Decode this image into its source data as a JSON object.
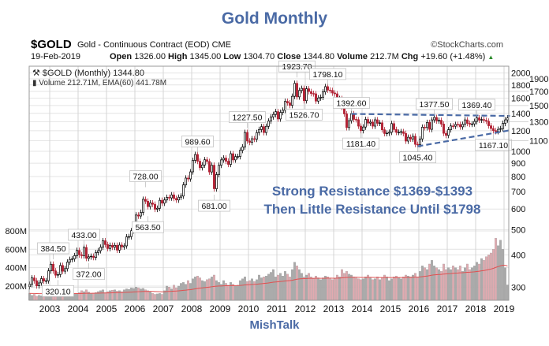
{
  "title": "Gold Monthly",
  "footer": "MishTalk",
  "header": {
    "symbol": "$GOLD",
    "description": "Gold - Continuous Contract (EOD)",
    "exchange": "CME",
    "source": "©StockCharts.com",
    "date": "19-Feb-2019",
    "open_label": "Open",
    "open": "1326.00",
    "high_label": "High",
    "high": "1345.00",
    "low_label": "Low",
    "low": "1304.70",
    "close_label": "Close",
    "close": "1344.80",
    "volume_label": "Volume",
    "volume": "212.7M",
    "chg_label": "Chg",
    "chg": "+19.60 (+1.48%)"
  },
  "legend": {
    "price": "$GOLD (Monthly) 1344.80",
    "volume": "Volume 212.71M, EMA(60) 441.78M"
  },
  "colors": {
    "up": "#000000",
    "down": "#b22234",
    "vol_up": "#aaaaaa",
    "vol_down": "#e2aab0",
    "ema": "#e05050",
    "trend": "#4a6aa5",
    "annotation": "#4a6aa5"
  },
  "chart_data": {
    "type": "candlestick",
    "price_scale": "log",
    "ylim": [
      280,
      2150
    ],
    "price_ticks": [
      2000,
      1900,
      1800,
      1700,
      1600,
      1500,
      1400,
      1300,
      1200,
      1100,
      1000,
      900,
      800,
      700,
      600,
      500,
      400,
      300
    ],
    "volume_ticks": [
      {
        "v": 800,
        "label": "800M"
      },
      {
        "v": 600,
        "label": "600M"
      },
      {
        "v": 400,
        "label": "400M"
      },
      {
        "v": 200,
        "label": "200M"
      }
    ],
    "x_ticks": [
      "2003",
      "2004",
      "2005",
      "2006",
      "2007",
      "2008",
      "2009",
      "2010",
      "2011",
      "2012",
      "2013",
      "2014",
      "2015",
      "2016",
      "2017",
      "2018",
      "2019"
    ],
    "grid": true,
    "monthly": [
      {
        "year": 2002,
        "first_month": 4,
        "closes": [
          308,
          326,
          318,
          304,
          312,
          324,
          317,
          318,
          347
        ],
        "volumes_m": [
          120,
          100,
          110,
          90,
          100,
          95,
          110,
          105,
          115
        ]
      },
      {
        "year": 2003,
        "first_month": 1,
        "closes": [
          368,
          347,
          334,
          336,
          364,
          346,
          354,
          375,
          384,
          386,
          397,
          416
        ],
        "volumes_m": [
          130,
          140,
          120,
          110,
          125,
          115,
          120,
          110,
          130,
          125,
          120,
          115
        ]
      },
      {
        "year": 2004,
        "first_month": 1,
        "closes": [
          400,
          397,
          427,
          388,
          393,
          395,
          391,
          408,
          415,
          428,
          453,
          438
        ],
        "volumes_m": [
          130,
          150,
          140,
          160,
          135,
          120,
          125,
          130,
          140,
          150,
          160,
          130
        ]
      },
      {
        "year": 2005,
        "first_month": 1,
        "closes": [
          423,
          435,
          428,
          435,
          417,
          436,
          429,
          433,
          469,
          470,
          495,
          518
        ],
        "volumes_m": [
          140,
          150,
          155,
          160,
          145,
          150,
          140,
          160,
          170,
          165,
          180,
          175
        ]
      },
      {
        "year": 2006,
        "first_month": 1,
        "closes": [
          569,
          564,
          582,
          654,
          643,
          613,
          633,
          626,
          599,
          604,
          648,
          632
        ],
        "volumes_m": [
          190,
          180,
          170,
          175,
          160,
          150,
          140,
          120,
          110,
          115,
          120,
          110
        ]
      },
      {
        "year": 2007,
        "first_month": 1,
        "closes": [
          650,
          665,
          662,
          680,
          659,
          650,
          666,
          673,
          743,
          789,
          783,
          834
        ],
        "volumes_m": [
          150,
          200,
          190,
          170,
          210,
          180,
          200,
          230,
          240,
          220,
          260,
          230
        ]
      },
      {
        "year": 2008,
        "first_month": 1,
        "closes": [
          923,
          972,
          916,
          865,
          886,
          928,
          914,
          833,
          884,
          718,
          814,
          884
        ],
        "volumes_m": [
          280,
          300,
          310,
          290,
          260,
          250,
          270,
          280,
          300,
          320,
          260,
          240
        ]
      },
      {
        "year": 2009,
        "first_month": 1,
        "closes": [
          927,
          942,
          916,
          891,
          979,
          927,
          954,
          955,
          1009,
          1040,
          1182,
          1096
        ],
        "volumes_m": [
          220,
          260,
          230,
          210,
          240,
          220,
          200,
          210,
          260,
          280,
          300,
          250
        ]
      },
      {
        "year": 2010,
        "first_month": 1,
        "closes": [
          1083,
          1118,
          1113,
          1180,
          1213,
          1244,
          1181,
          1248,
          1307,
          1357,
          1386,
          1421
        ],
        "volumes_m": [
          260,
          280,
          250,
          270,
          320,
          290,
          300,
          310,
          330,
          350,
          380,
          300
        ]
      },
      {
        "year": 2011,
        "first_month": 1,
        "closes": [
          1332,
          1411,
          1439,
          1556,
          1536,
          1502,
          1628,
          1825,
          1620,
          1714,
          1746,
          1566
        ],
        "volumes_m": [
          320,
          340,
          310,
          360,
          330,
          300,
          380,
          460,
          420,
          380,
          340,
          300
        ]
      },
      {
        "year": 2012,
        "first_month": 1,
        "closes": [
          1740,
          1697,
          1669,
          1664,
          1560,
          1604,
          1614,
          1692,
          1773,
          1720,
          1714,
          1676
        ],
        "volumes_m": [
          320,
          340,
          300,
          280,
          310,
          290,
          270,
          290,
          310,
          300,
          280,
          270
        ]
      },
      {
        "year": 2013,
        "first_month": 1,
        "closes": [
          1664,
          1578,
          1596,
          1476,
          1393,
          1234,
          1312,
          1395,
          1327,
          1323,
          1250,
          1202
        ],
        "volumes_m": [
          280,
          320,
          300,
          380,
          340,
          360,
          330,
          320,
          300,
          290,
          280,
          270
        ]
      },
      {
        "year": 2014,
        "first_month": 1,
        "closes": [
          1240,
          1326,
          1284,
          1295,
          1250,
          1322,
          1282,
          1287,
          1210,
          1171,
          1175,
          1184
        ],
        "volumes_m": [
          280,
          300,
          320,
          290,
          270,
          280,
          300,
          270,
          290,
          320,
          300,
          260
        ]
      },
      {
        "year": 2015,
        "first_month": 1,
        "closes": [
          1278,
          1213,
          1183,
          1184,
          1190,
          1172,
          1095,
          1133,
          1115,
          1142,
          1064,
          1061
        ],
        "volumes_m": [
          280,
          300,
          310,
          290,
          280,
          300,
          320,
          310,
          300,
          320,
          340,
          300
        ]
      },
      {
        "year": 2016,
        "first_month": 1,
        "closes": [
          1116,
          1238,
          1234,
          1291,
          1215,
          1321,
          1350,
          1309,
          1316,
          1273,
          1173,
          1152
        ],
        "volumes_m": [
          360,
          420,
          400,
          380,
          440,
          480,
          420,
          400,
          380,
          360,
          440,
          380
        ]
      },
      {
        "year": 2017,
        "first_month": 1,
        "closes": [
          1211,
          1252,
          1249,
          1269,
          1268,
          1242,
          1270,
          1321,
          1281,
          1271,
          1275,
          1303
        ],
        "volumes_m": [
          400,
          380,
          420,
          400,
          380,
          420,
          360,
          400,
          440,
          380,
          400,
          420
        ]
      },
      {
        "year": 2018,
        "first_month": 1,
        "closes": [
          1345,
          1318,
          1325,
          1316,
          1305,
          1254,
          1224,
          1201,
          1192,
          1215,
          1222,
          1281
        ],
        "volumes_m": [
          460,
          440,
          500,
          480,
          520,
          540,
          560,
          600,
          720,
          640,
          700,
          600
        ]
      },
      {
        "year": 2019,
        "first_month": 1,
        "closes": [
          1321,
          1344.8
        ],
        "volumes_m": [
          400,
          212.7
        ]
      }
    ],
    "price_labels": [
      {
        "text": "384.50",
        "year": 2003,
        "month": 2,
        "value": 384.5,
        "pos": "above"
      },
      {
        "text": "320.10",
        "year": 2003,
        "month": 4,
        "value": 320.1,
        "pos": "below"
      },
      {
        "text": "433.00",
        "year": 2004,
        "month": 3,
        "value": 433,
        "pos": "above"
      },
      {
        "text": "372.00",
        "year": 2004,
        "month": 5,
        "value": 372,
        "pos": "below"
      },
      {
        "text": "728.00",
        "year": 2006,
        "month": 5,
        "value": 728,
        "pos": "above"
      },
      {
        "text": "563.50",
        "year": 2006,
        "month": 6,
        "value": 563.5,
        "pos": "below"
      },
      {
        "text": "989.60",
        "year": 2008,
        "month": 3,
        "value": 989.6,
        "pos": "above"
      },
      {
        "text": "681.00",
        "year": 2008,
        "month": 10,
        "value": 681,
        "pos": "below"
      },
      {
        "text": "1227.50",
        "year": 2009,
        "month": 12,
        "value": 1227.5,
        "pos": "above"
      },
      {
        "text": "1923.70",
        "year": 2011,
        "month": 9,
        "value": 1923.7,
        "pos": "above"
      },
      {
        "text": "1526.70",
        "year": 2011,
        "month": 12,
        "value": 1526.7,
        "pos": "below"
      },
      {
        "text": "1798.10",
        "year": 2012,
        "month": 10,
        "value": 1798.1,
        "pos": "above"
      },
      {
        "text": "1392.60",
        "year": 2013,
        "month": 8,
        "value": 1392.6,
        "pos": "above"
      },
      {
        "text": "1181.40",
        "year": 2013,
        "month": 12,
        "value": 1181.4,
        "pos": "below"
      },
      {
        "text": "1045.40",
        "year": 2015,
        "month": 12,
        "value": 1045.4,
        "pos": "below"
      },
      {
        "text": "1377.50",
        "year": 2016,
        "month": 7,
        "value": 1377.5,
        "pos": "above"
      },
      {
        "text": "1369.40",
        "year": 2018,
        "month": 1,
        "value": 1369.4,
        "pos": "above"
      },
      {
        "text": "1167.10",
        "year": 2018,
        "month": 8,
        "value": 1167.1,
        "pos": "below"
      }
    ],
    "trendlines": [
      {
        "from": {
          "year": 2013,
          "month": 8,
          "value": 1392.6
        },
        "to": {
          "year": 2019,
          "month": 3,
          "value": 1368
        }
      },
      {
        "from": {
          "year": 2015,
          "month": 12,
          "value": 1045.4
        },
        "to": {
          "year": 2019,
          "month": 3,
          "value": 1205
        }
      }
    ],
    "annotations": [
      "Strong Resistance $1369-$1393",
      "Then Little Resistance Until $1798"
    ]
  }
}
